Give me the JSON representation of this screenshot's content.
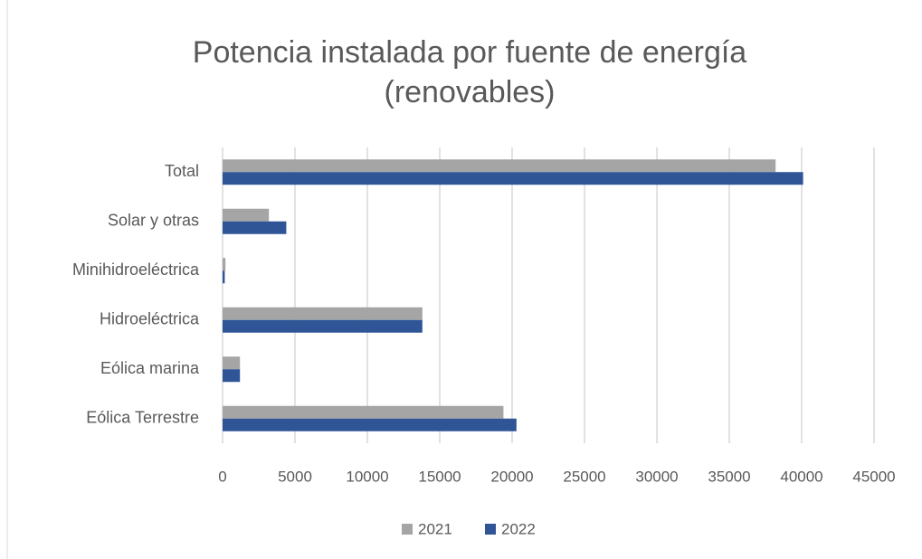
{
  "chart_data": {
    "type": "hbar",
    "title": [
      "Potencia instalada por fuente de energía",
      "(renovables)"
    ],
    "categories": [
      "Total",
      "Solar y otras",
      "Minihidroeléctrica",
      "Hidroeléctrica",
      "Eólica marina",
      "Eólica Terrestre"
    ],
    "series": [
      {
        "name": "2021",
        "color": "#a5a5a5",
        "values": [
          38200,
          3200,
          200,
          13800,
          1200,
          19400
        ]
      },
      {
        "name": "2022",
        "color": "#2f5597",
        "values": [
          40100,
          4400,
          150,
          13800,
          1200,
          20300
        ]
      }
    ],
    "xlim": [
      0,
      45000
    ],
    "xticks": [
      0,
      5000,
      10000,
      15000,
      20000,
      25000,
      30000,
      35000,
      40000,
      45000
    ],
    "grid": true,
    "legend": "bottom"
  }
}
